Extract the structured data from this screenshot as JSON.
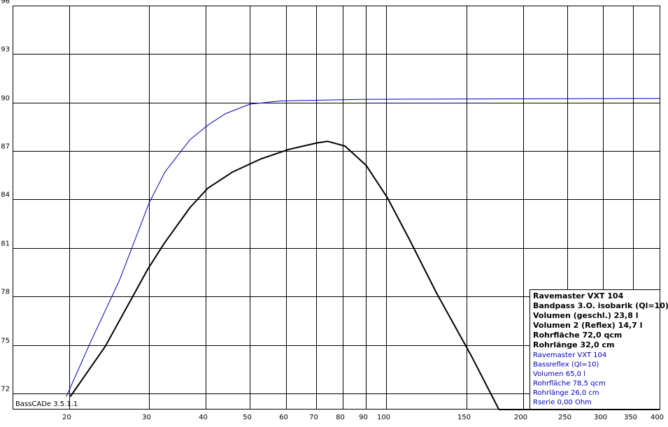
{
  "chart_data": {
    "type": "line",
    "xscale": "log",
    "xlim": [
      15,
      400
    ],
    "ylim": [
      71,
      96
    ],
    "xticks": [
      20,
      30,
      40,
      50,
      60,
      70,
      80,
      90,
      100,
      150,
      200,
      250,
      300,
      350,
      400
    ],
    "yticks": [
      72,
      75,
      78,
      81,
      84,
      87,
      90,
      93,
      96
    ],
    "grid": true,
    "series": [
      {
        "name": "Ravemaster VXT 104 Bandpass 3.O. isobarik",
        "color": "#000000",
        "width": 2,
        "x": [
          20.1,
          24.0,
          29.8,
          32.4,
          36.9,
          40.4,
          45.8,
          52.8,
          60.9,
          70.3,
          74.2,
          81.1,
          90.3,
          100.5,
          112,
          129,
          154,
          177,
          400
        ],
        "values": [
          71.8,
          74.9,
          79.7,
          81.3,
          83.5,
          84.7,
          85.7,
          86.5,
          87.1,
          87.5,
          87.6,
          87.3,
          86.1,
          84.1,
          81.6,
          78.2,
          74.3,
          71,
          71
        ]
      },
      {
        "name": "Ravemaster VXT 104 Bassreflex",
        "color": "#0000c0",
        "width": 1,
        "x": [
          19.7,
          22.3,
          25.8,
          30.0,
          32.5,
          36.9,
          40.4,
          44.1,
          50.0,
          58.6,
          90.3,
          400
        ],
        "values": [
          71.8,
          75.2,
          79.0,
          83.8,
          85.7,
          87.7,
          88.6,
          89.3,
          89.9,
          90.1,
          90.2,
          90.25
        ]
      }
    ],
    "legend": {
      "primary": {
        "color": "#000000",
        "lines": [
          "Ravemaster VXT 104",
          "Bandpass 3.O. isobarik (Ql=10)",
          "Volumen (geschl.) 23,8 l",
          "Volumen 2 (Reflex) 14,7 l",
          "Rohrfläche 72,0 qcm",
          "Rohrlänge 32,0 cm"
        ]
      },
      "secondary": {
        "color": "#0000c0",
        "lines": [
          "Ravemaster VXT 104",
          "Bassreflex (Ql=10)",
          "Volumen 65,0 l",
          "Rohrfläche 78,5 qcm",
          "Rohrlänge 26,0 cm",
          "Rserie 0,00 Ohm"
        ]
      }
    },
    "annotation": "BassCADe 3.5.1.1"
  }
}
